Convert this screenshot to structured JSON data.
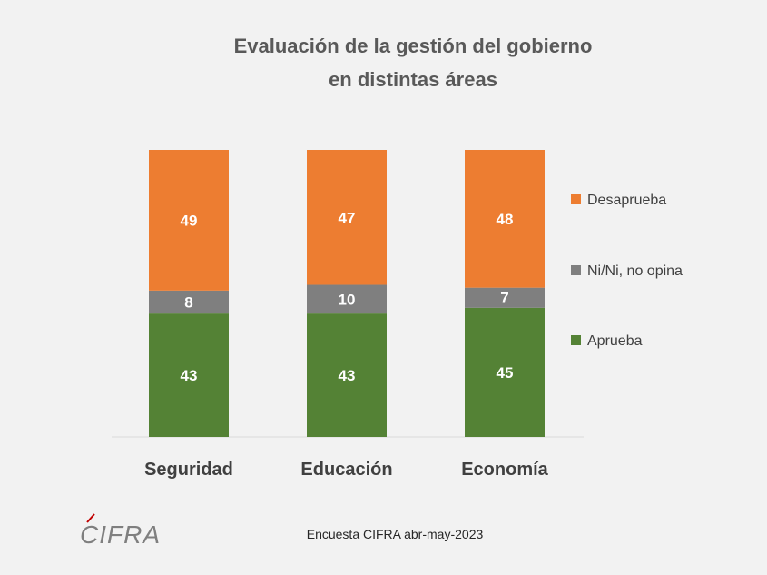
{
  "chart_data": {
    "type": "bar",
    "stacked": true,
    "title": [
      "Evaluación de la gestión del gobierno",
      "en distintas áreas"
    ],
    "categories": [
      "Seguridad",
      "Educación",
      "Economía"
    ],
    "series": [
      {
        "name": "Aprueba",
        "values": [
          43,
          43,
          45
        ],
        "color": "#548235"
      },
      {
        "name": "Ni/Ni, no opina",
        "values": [
          8,
          10,
          7
        ],
        "color": "#7f7f7f"
      },
      {
        "name": "Desaprueba",
        "values": [
          49,
          47,
          48
        ],
        "color": "#ed7d31"
      }
    ],
    "legend_order": [
      "Desaprueba",
      "Ni/Ni, no opina",
      "Aprueba"
    ],
    "legend_position": "right",
    "ylim": [
      0,
      100
    ],
    "grid": false
  },
  "footer": {
    "source": "Encuesta CIFRA abr-may-2023",
    "logo": "CIFRA"
  }
}
